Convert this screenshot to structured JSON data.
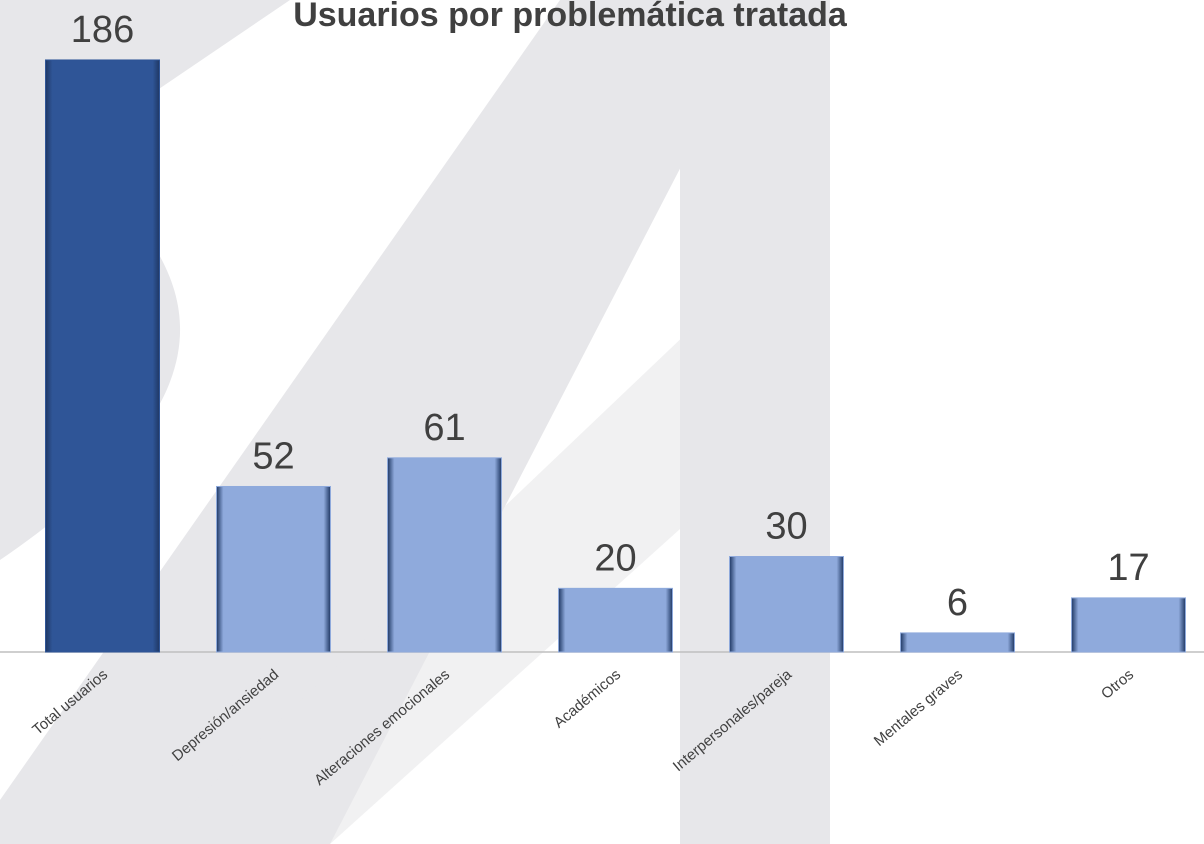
{
  "chart_data": {
    "type": "bar",
    "title": "Usuarios por problemática tratada",
    "categories": [
      "Total usuarios",
      "Depresión/ansiedad",
      "Alteraciones emocionales",
      "Académicos",
      "Interpersonales/pareja",
      "Mentales graves",
      "Otros"
    ],
    "values": [
      186,
      52,
      61,
      20,
      30,
      6,
      17
    ],
    "colors": [
      "#2f5597",
      "#8faadc",
      "#8faadc",
      "#8faadc",
      "#8faadc",
      "#8faadc",
      "#8faadc"
    ]
  }
}
